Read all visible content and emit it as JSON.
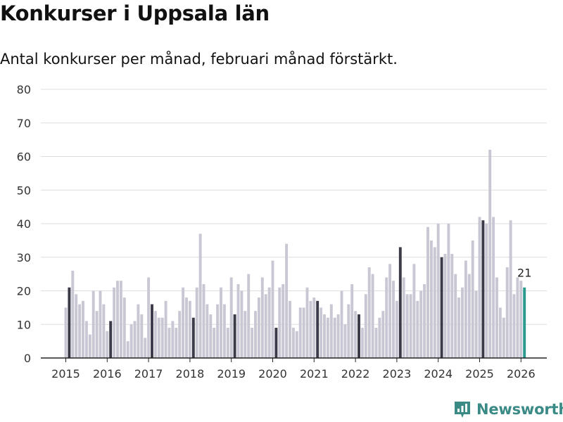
{
  "header": {
    "title": "Konkurser i Uppsala län",
    "subtitle": "Antal konkurser per månad, februari månad förstärkt."
  },
  "branding": {
    "logo_text": "Newsworthy",
    "logo_icon": "bar-chart-pin-icon"
  },
  "colors": {
    "bar": "#c8c7d3",
    "february": "#3a3a48",
    "latest": "#2a9a8e",
    "grid": "#dedede",
    "axis": "#222222",
    "brand": "#3a8a86"
  },
  "chart_data": {
    "type": "bar",
    "title": "Konkurser i Uppsala län",
    "subtitle": "Antal konkurser per månad, februari månad förstärkt.",
    "xlabel": "",
    "ylabel": "",
    "ylim": [
      0,
      80
    ],
    "yticks": [
      0,
      10,
      20,
      30,
      40,
      50,
      60,
      70,
      80
    ],
    "xtick_labels": [
      "2015",
      "2016",
      "2017",
      "2018",
      "2019",
      "2020",
      "2021",
      "2022",
      "2023",
      "2024",
      "2025",
      "2026"
    ],
    "start_month": "2015-01",
    "highlight": "february",
    "last_value_label": "21",
    "values": [
      15,
      21,
      26,
      19,
      16,
      17,
      11,
      7,
      20,
      14,
      20,
      16,
      8,
      11,
      21,
      23,
      23,
      18,
      5,
      10,
      11,
      16,
      13,
      6,
      24,
      16,
      14,
      12,
      12,
      17,
      9,
      11,
      9,
      14,
      21,
      18,
      17,
      12,
      21,
      37,
      22,
      16,
      13,
      9,
      16,
      21,
      16,
      9,
      24,
      13,
      22,
      20,
      14,
      25,
      9,
      14,
      18,
      24,
      19,
      21,
      29,
      9,
      21,
      22,
      34,
      17,
      9,
      8,
      15,
      15,
      21,
      17,
      18,
      17,
      15,
      13,
      12,
      16,
      12,
      13,
      20,
      10,
      16,
      22,
      14,
      13,
      9,
      19,
      27,
      25,
      9,
      12,
      14,
      24,
      28,
      23,
      17,
      33,
      24,
      19,
      19,
      28,
      17,
      20,
      22,
      39,
      35,
      33,
      40,
      30,
      31,
      40,
      31,
      25,
      18,
      21,
      29,
      25,
      35,
      20,
      42,
      41,
      40,
      62,
      42,
      24,
      15,
      12,
      27,
      41,
      19,
      24,
      23,
      21
    ]
  }
}
